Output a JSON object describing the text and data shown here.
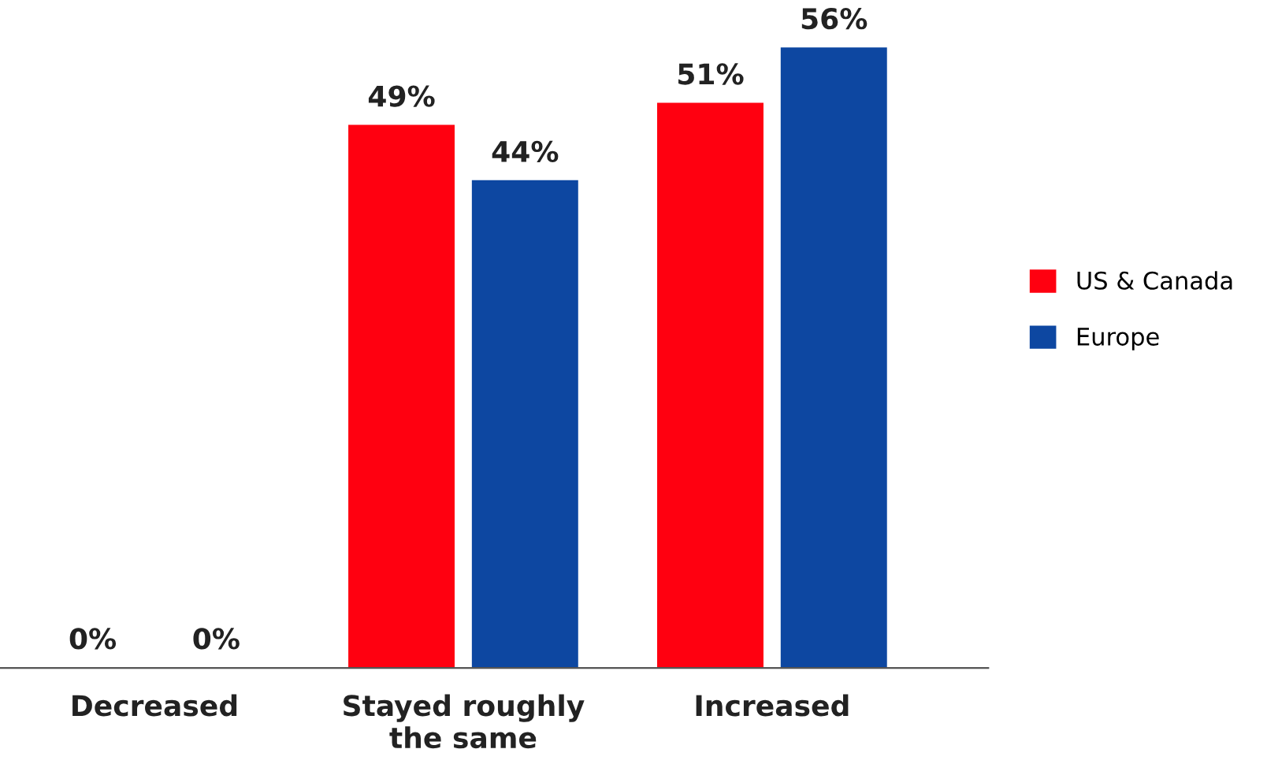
{
  "chart_data": {
    "type": "bar",
    "categories": [
      "Decreased",
      "Stayed roughly\nthe same",
      "Increased"
    ],
    "series": [
      {
        "name": "US & Canada",
        "color": "#ff0010",
        "values": [
          0,
          49,
          51
        ],
        "value_labels": [
          "0%",
          "49%",
          "51%"
        ]
      },
      {
        "name": "Europe",
        "color": "#0d47a1",
        "values": [
          0,
          44,
          56
        ],
        "value_labels": [
          "0%",
          "44%",
          "56%"
        ]
      }
    ],
    "legend": "right",
    "grid": false
  }
}
